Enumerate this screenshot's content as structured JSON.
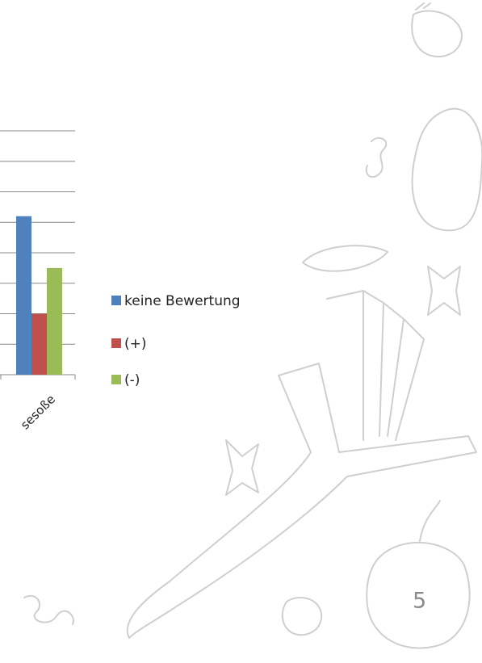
{
  "chart_data": {
    "type": "bar",
    "categories": [
      "sesoße"
    ],
    "series": [
      {
        "name": "keine Bewertung",
        "color": "#4f81bd",
        "values": [
          5.2
        ]
      },
      {
        "name": "(+)",
        "color": "#c0504d",
        "values": [
          2
        ]
      },
      {
        "name": "(-)",
        "color": "#9bbb59",
        "values": [
          3.5
        ]
      }
    ],
    "ylim": [
      0,
      8
    ],
    "yticks": [
      0,
      1,
      2,
      3,
      4,
      5,
      6,
      7,
      8
    ],
    "grid": true
  },
  "page_number": "5"
}
